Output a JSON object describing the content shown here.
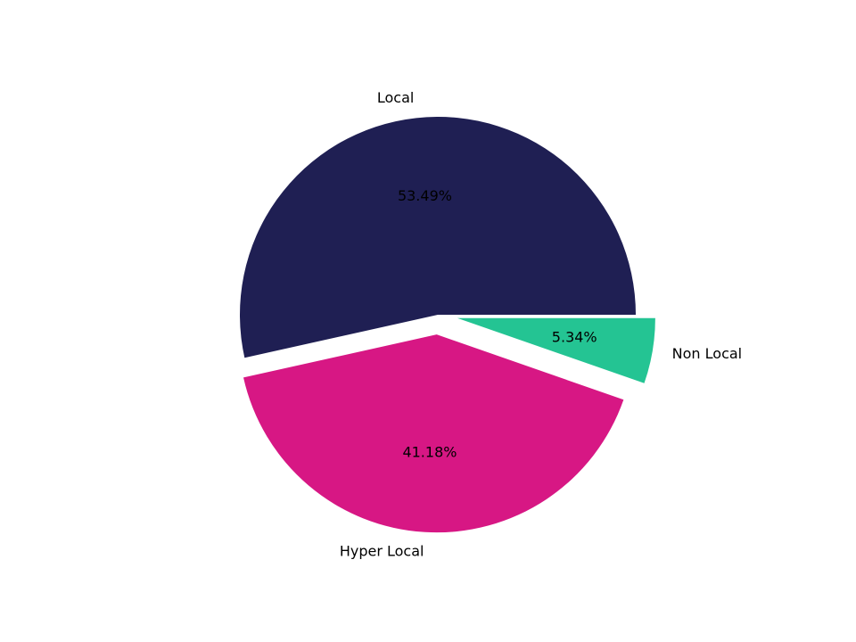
{
  "chart_data": {
    "type": "pie",
    "title": "",
    "labels": [
      "Local",
      "Hyper Local",
      "Non Local"
    ],
    "values": [
      53.49,
      41.18,
      5.34
    ],
    "pct_labels": [
      "53.49%",
      "41.18%",
      "5.34%"
    ],
    "colors": [
      "#1f1f53",
      "#d71784",
      "#24c493"
    ],
    "explode": [
      0.0,
      0.1,
      0.1
    ],
    "startangle": 0,
    "counterclock": true,
    "legend": null
  }
}
